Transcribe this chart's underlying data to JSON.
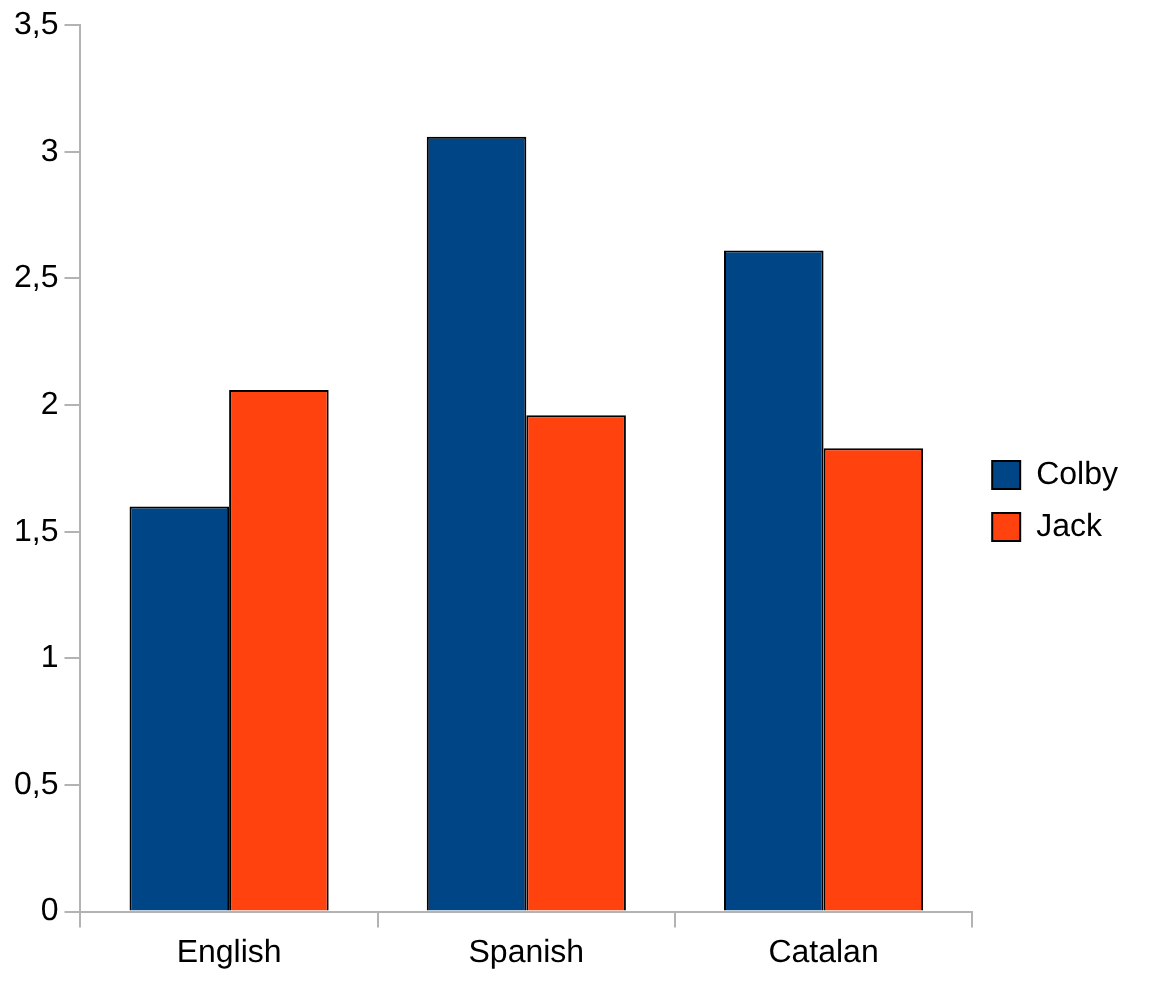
{
  "chart_data": {
    "type": "bar",
    "categories": [
      "English",
      "Spanish",
      "Catalan"
    ],
    "series": [
      {
        "name": "Colby",
        "color": "#004586",
        "values": [
          1.6,
          3.06,
          2.61
        ]
      },
      {
        "name": "Jack",
        "color": "#ff420e",
        "values": [
          2.06,
          1.96,
          1.83
        ]
      }
    ],
    "ylim": [
      0,
      3.5
    ],
    "yticks": [
      0,
      {
        "value": 0.5,
        "label": "0,5"
      },
      1,
      {
        "value": 1.5,
        "label": "1,5"
      },
      2,
      {
        "value": 2.5,
        "label": "2,5"
      },
      3,
      {
        "value": 3.5,
        "label": "3,5"
      }
    ],
    "grid": false,
    "legend": "right"
  }
}
